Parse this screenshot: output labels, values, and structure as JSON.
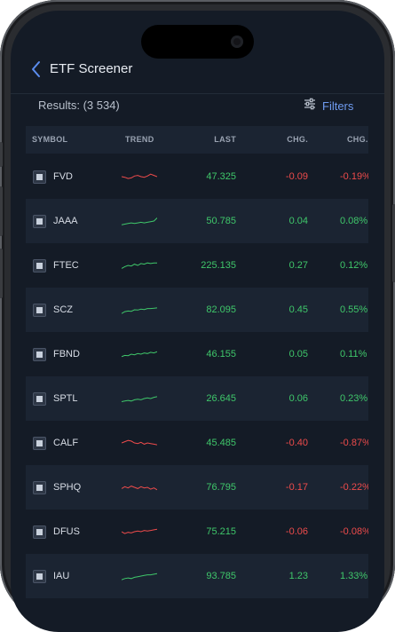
{
  "header": {
    "title": "ETF Screener",
    "back_icon": "chevron-left-icon"
  },
  "results": {
    "label": "Results: (3 534)"
  },
  "filters": {
    "label": "Filters",
    "icon": "sliders-icon"
  },
  "columns": [
    "SYMBOL",
    "TREND",
    "LAST",
    "CHG.",
    "CHG."
  ],
  "colors": {
    "positive": "#3fc76a",
    "negative": "#ee4b4b",
    "accent": "#6f9bf0",
    "background": "#141b26",
    "row_alt": "#1b2432"
  },
  "rows": [
    {
      "symbol": "FVD",
      "last": "47.325",
      "chg": "-0.09",
      "chg_pct": "-0.19%",
      "dir": "neg",
      "trend": [
        0.5,
        0.45,
        0.35,
        0.4,
        0.55,
        0.6,
        0.5,
        0.45,
        0.55,
        0.7,
        0.6,
        0.5
      ]
    },
    {
      "symbol": "JAAA",
      "last": "50.785",
      "chg": "0.04",
      "chg_pct": "0.08%",
      "dir": "pos",
      "trend": [
        0.2,
        0.25,
        0.3,
        0.35,
        0.3,
        0.35,
        0.4,
        0.35,
        0.4,
        0.45,
        0.5,
        0.75
      ]
    },
    {
      "symbol": "FTEC",
      "last": "225.135",
      "chg": "0.27",
      "chg_pct": "0.12%",
      "dir": "pos",
      "trend": [
        0.25,
        0.4,
        0.5,
        0.45,
        0.6,
        0.5,
        0.65,
        0.6,
        0.7,
        0.65,
        0.7,
        0.7
      ]
    },
    {
      "symbol": "SCZ",
      "last": "82.095",
      "chg": "0.45",
      "chg_pct": "0.55%",
      "dir": "pos",
      "trend": [
        0.2,
        0.35,
        0.4,
        0.38,
        0.5,
        0.48,
        0.55,
        0.52,
        0.6,
        0.6,
        0.62,
        0.65
      ]
    },
    {
      "symbol": "FBND",
      "last": "46.155",
      "chg": "0.05",
      "chg_pct": "0.11%",
      "dir": "pos",
      "trend": [
        0.3,
        0.4,
        0.38,
        0.5,
        0.45,
        0.55,
        0.5,
        0.6,
        0.55,
        0.65,
        0.6,
        0.7
      ]
    },
    {
      "symbol": "SPTL",
      "last": "26.645",
      "chg": "0.06",
      "chg_pct": "0.23%",
      "dir": "pos",
      "trend": [
        0.25,
        0.3,
        0.35,
        0.3,
        0.4,
        0.45,
        0.4,
        0.5,
        0.55,
        0.5,
        0.6,
        0.65
      ]
    },
    {
      "symbol": "CALF",
      "last": "45.485",
      "chg": "-0.40",
      "chg_pct": "-0.87%",
      "dir": "neg",
      "trend": [
        0.5,
        0.6,
        0.7,
        0.65,
        0.5,
        0.45,
        0.55,
        0.4,
        0.5,
        0.45,
        0.4,
        0.35
      ]
    },
    {
      "symbol": "SPHQ",
      "last": "76.795",
      "chg": "-0.17",
      "chg_pct": "-0.22%",
      "dir": "neg",
      "trend": [
        0.4,
        0.55,
        0.45,
        0.6,
        0.5,
        0.4,
        0.55,
        0.45,
        0.5,
        0.35,
        0.45,
        0.3
      ]
    },
    {
      "symbol": "DFUS",
      "last": "75.215",
      "chg": "-0.06",
      "chg_pct": "-0.08%",
      "dir": "neg",
      "trend": [
        0.5,
        0.35,
        0.45,
        0.4,
        0.5,
        0.55,
        0.5,
        0.6,
        0.55,
        0.6,
        0.65,
        0.7
      ]
    },
    {
      "symbol": "IAU",
      "last": "93.785",
      "chg": "1.23",
      "chg_pct": "1.33%",
      "dir": "pos",
      "trend": [
        0.2,
        0.3,
        0.35,
        0.3,
        0.4,
        0.45,
        0.5,
        0.55,
        0.6,
        0.6,
        0.65,
        0.7
      ]
    }
  ]
}
